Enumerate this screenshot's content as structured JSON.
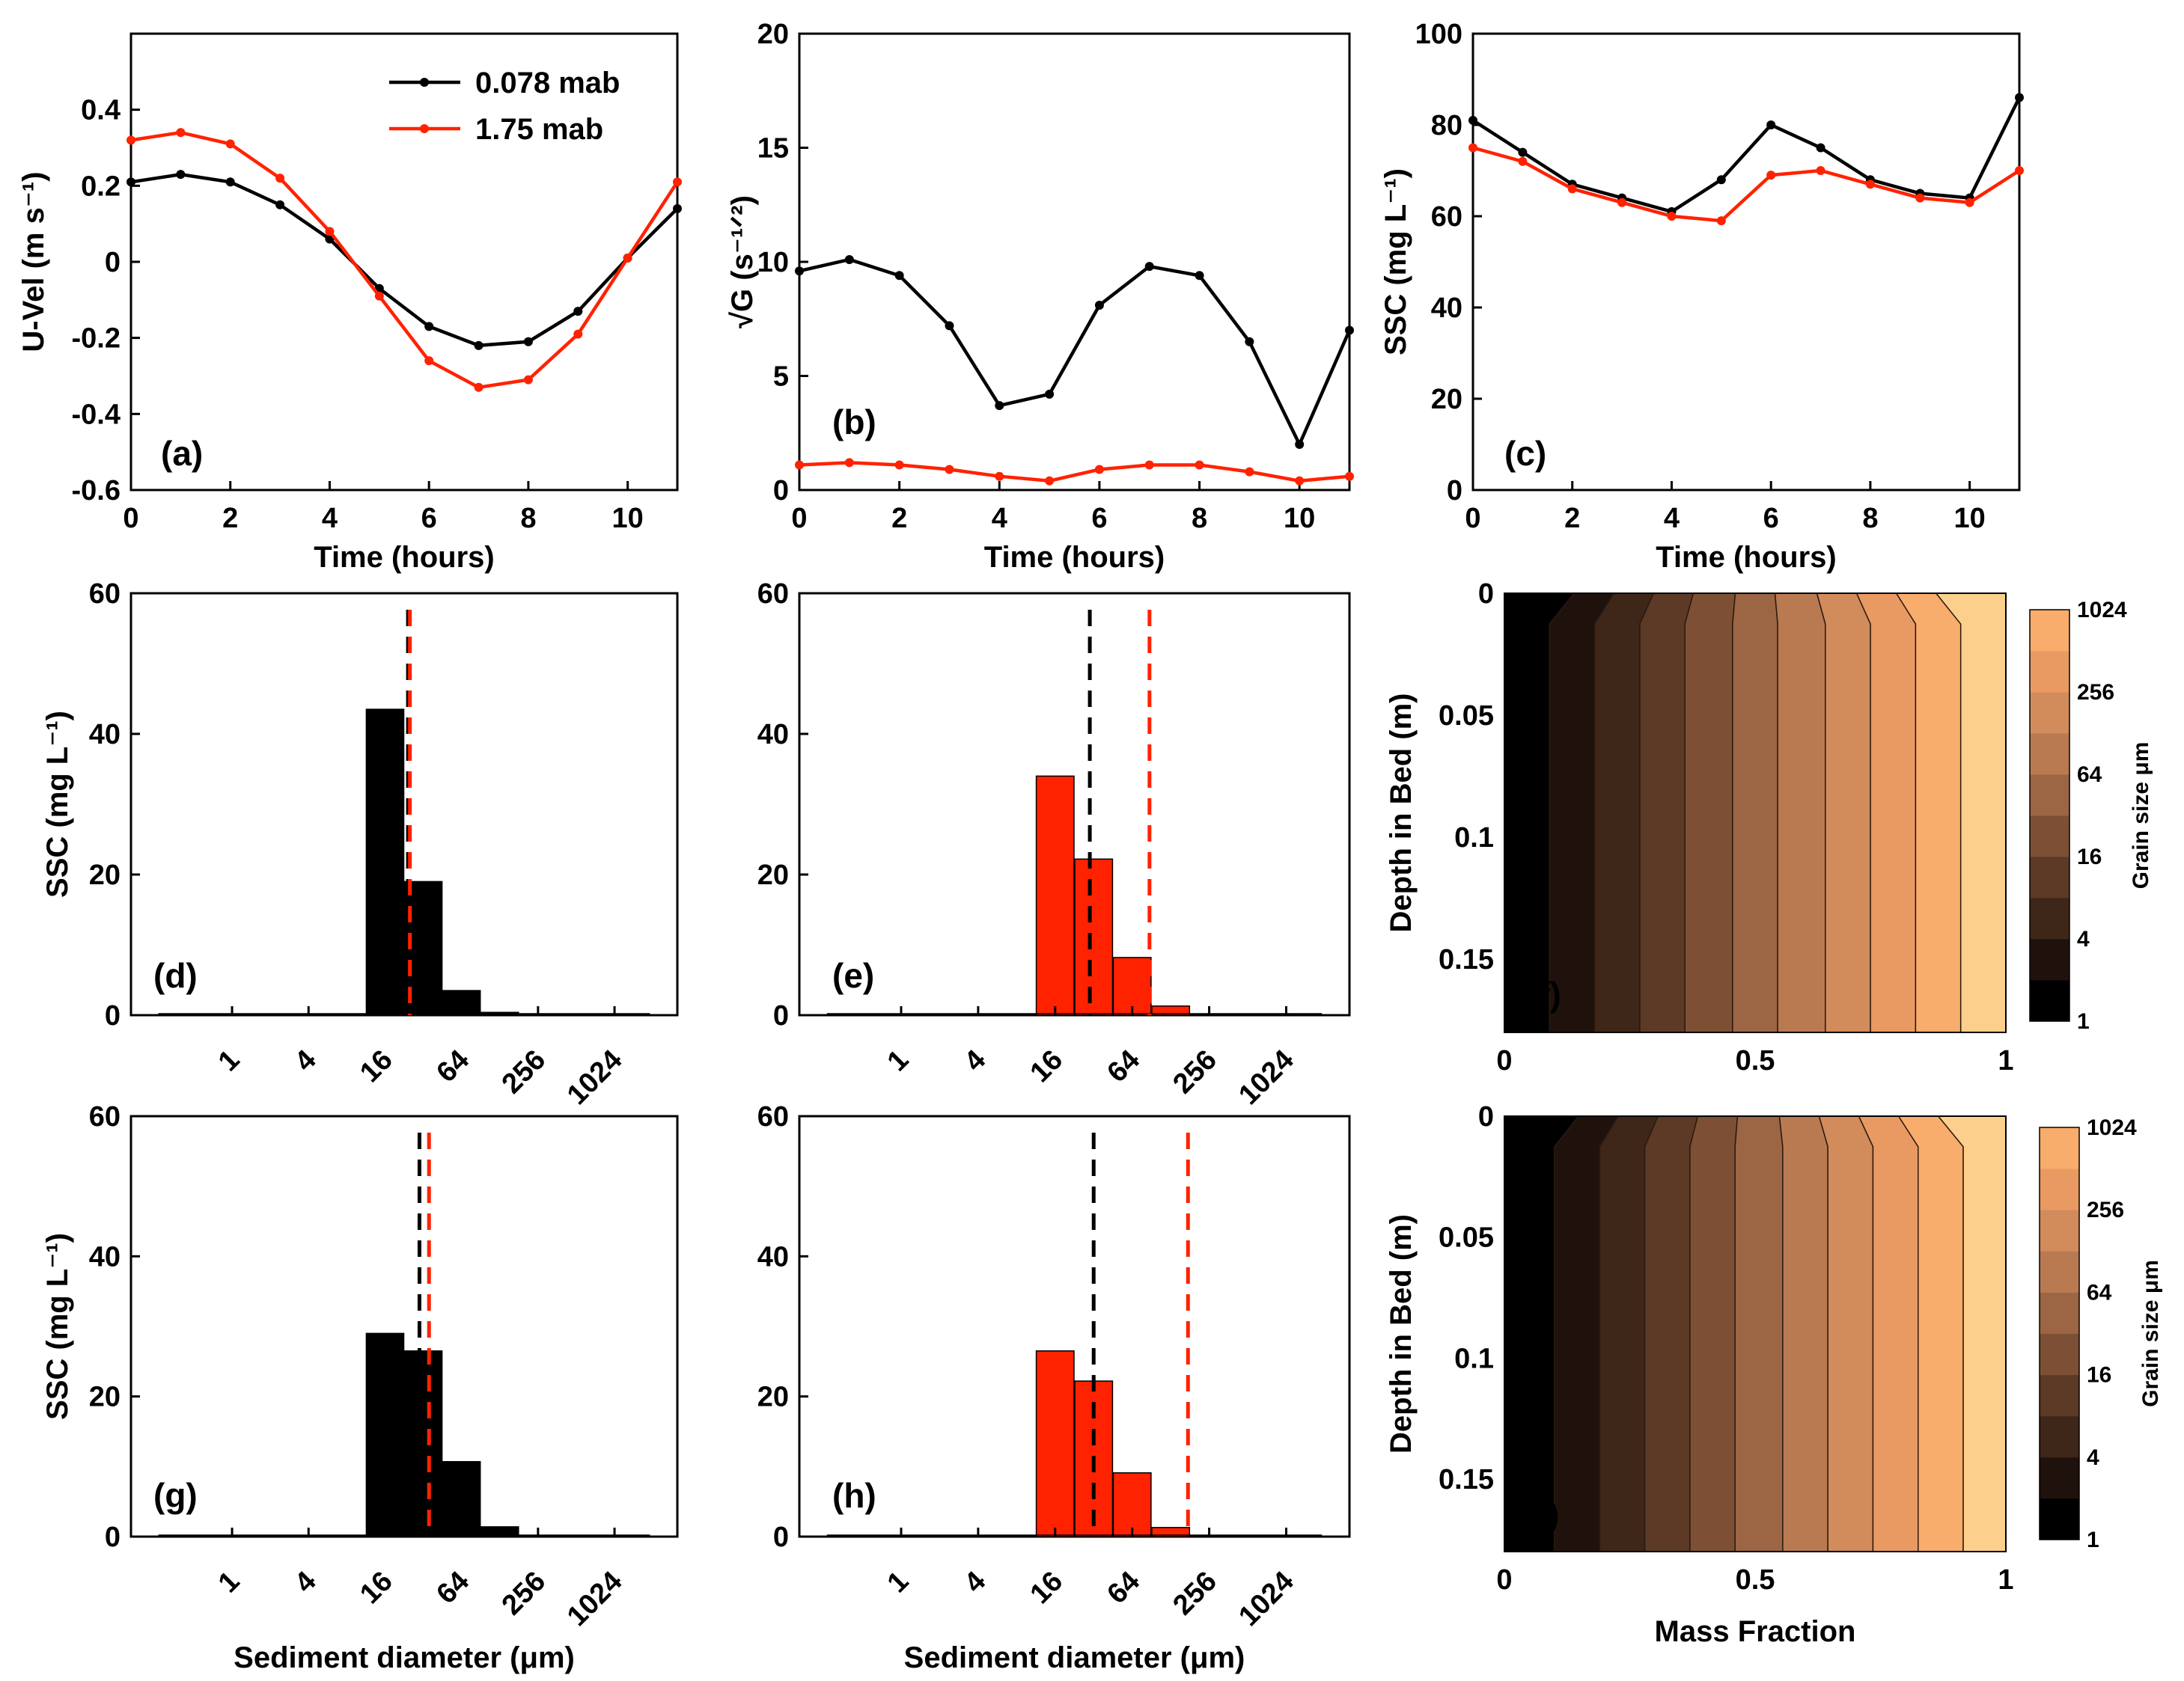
{
  "colors": {
    "black_series": "#000000",
    "red_series": "#ff2200",
    "bar_black": "#000000",
    "bar_red": "#ff2200"
  },
  "chart_data": [
    {
      "id": "a",
      "type": "line",
      "panel_label": "(a)",
      "xlabel": "Time (hours)",
      "ylabel": "U-Vel (m s⁻¹)",
      "xlim": [
        0,
        11
      ],
      "ylim": [
        -0.6,
        0.6
      ],
      "xticks": [
        "0",
        "2",
        "4",
        "6",
        "8",
        "10"
      ],
      "xtick_values": [
        0,
        2,
        4,
        6,
        8,
        10
      ],
      "yticks": [
        "-0.6",
        "-0.4",
        "-0.2",
        "0",
        "0.2",
        "0.4"
      ],
      "ytick_values": [
        -0.6,
        -0.4,
        -0.2,
        0,
        0.2,
        0.4
      ],
      "x": [
        0,
        1,
        2,
        3,
        4,
        5,
        6,
        7,
        8,
        9,
        10,
        11
      ],
      "legend": [
        "0.078 mab",
        "1.75 mab"
      ],
      "series": [
        {
          "name": "0.078 mab",
          "color": "#000000",
          "values": [
            0.21,
            0.23,
            0.21,
            0.15,
            0.06,
            -0.07,
            -0.17,
            -0.22,
            -0.21,
            -0.13,
            0.01,
            0.14
          ]
        },
        {
          "name": "1.75 mab",
          "color": "#ff2200",
          "values": [
            0.32,
            0.34,
            0.31,
            0.22,
            0.08,
            -0.09,
            -0.26,
            -0.33,
            -0.31,
            -0.19,
            0.01,
            0.21
          ]
        }
      ]
    },
    {
      "id": "b",
      "type": "line",
      "panel_label": "(b)",
      "xlabel": "Time (hours)",
      "ylabel": "√G (s⁻¹ᐟ²)",
      "xlim": [
        0,
        11
      ],
      "ylim": [
        0,
        20
      ],
      "xticks": [
        "0",
        "2",
        "4",
        "6",
        "8",
        "10"
      ],
      "xtick_values": [
        0,
        2,
        4,
        6,
        8,
        10
      ],
      "yticks": [
        "0",
        "5",
        "10",
        "15",
        "20"
      ],
      "ytick_values": [
        0,
        5,
        10,
        15,
        20
      ],
      "x": [
        0,
        1,
        2,
        3,
        4,
        5,
        6,
        7,
        8,
        9,
        10,
        11
      ],
      "series": [
        {
          "name": "0.078 mab",
          "color": "#000000",
          "values": [
            9.6,
            10.1,
            9.4,
            7.2,
            3.7,
            4.2,
            8.1,
            9.8,
            9.4,
            6.5,
            2.0,
            7.0
          ]
        },
        {
          "name": "1.75 mab",
          "color": "#ff2200",
          "values": [
            1.1,
            1.2,
            1.1,
            0.9,
            0.6,
            0.4,
            0.9,
            1.1,
            1.1,
            0.8,
            0.4,
            0.6
          ]
        }
      ]
    },
    {
      "id": "c",
      "type": "line",
      "panel_label": "(c)",
      "xlabel": "Time (hours)",
      "ylabel": "SSC (mg L⁻¹)",
      "xlim": [
        0,
        11
      ],
      "ylim": [
        0,
        100
      ],
      "xticks": [
        "0",
        "2",
        "4",
        "6",
        "8",
        "10"
      ],
      "xtick_values": [
        0,
        2,
        4,
        6,
        8,
        10
      ],
      "yticks": [
        "0",
        "20",
        "40",
        "60",
        "80",
        "100"
      ],
      "ytick_values": [
        0,
        20,
        40,
        60,
        80,
        100
      ],
      "x": [
        0,
        1,
        2,
        3,
        4,
        5,
        6,
        7,
        8,
        9,
        10,
        11
      ],
      "series": [
        {
          "name": "0.078 mab",
          "color": "#000000",
          "values": [
            81,
            74,
            67,
            64,
            61,
            68,
            80,
            75,
            68,
            65,
            64,
            86
          ]
        },
        {
          "name": "1.75 mab",
          "color": "#ff2200",
          "values": [
            75,
            72,
            66,
            63,
            60,
            59,
            69,
            70,
            67,
            64,
            63,
            70
          ]
        }
      ]
    },
    {
      "id": "d",
      "type": "bar",
      "panel_label": "(d)",
      "xlabel": "",
      "ylabel": "SSC (mg L⁻¹)",
      "ylim": [
        0,
        60
      ],
      "yticks": [
        "0",
        "20",
        "40",
        "60"
      ],
      "ytick_values": [
        0,
        20,
        40,
        60
      ],
      "xticks": [
        "1",
        "4",
        "16",
        "64",
        "256",
        "1024"
      ],
      "xtick_exp": [
        0,
        2,
        4,
        6,
        8,
        10
      ],
      "bar_exp": [
        0,
        1,
        2,
        3,
        4,
        5,
        6,
        7,
        8,
        9,
        10
      ],
      "values": [
        0,
        0,
        0,
        0,
        43.5,
        19.0,
        3.5,
        0.4,
        0.1,
        0.05,
        0
      ],
      "bar_color": "#000000",
      "dashed_lines": [
        {
          "color": "#000000",
          "x_exp": 4.6
        },
        {
          "color": "#ff2200",
          "x_exp": 4.65
        }
      ]
    },
    {
      "id": "e",
      "type": "bar",
      "panel_label": "(e)",
      "xlabel": "",
      "ylabel": "",
      "ylim": [
        0,
        60
      ],
      "yticks": [
        "0",
        "20",
        "40",
        "60"
      ],
      "ytick_values": [
        0,
        20,
        40,
        60
      ],
      "xticks": [
        "1",
        "4",
        "16",
        "64",
        "256",
        "1024"
      ],
      "xtick_exp": [
        0,
        2,
        4,
        6,
        8,
        10
      ],
      "bar_exp": [
        0,
        1,
        2,
        3,
        4,
        5,
        6,
        7,
        8,
        9,
        10
      ],
      "values": [
        0,
        0,
        0,
        0,
        34,
        22.2,
        8.2,
        1.3,
        0.1,
        0.05,
        0
      ],
      "bar_color": "#ff2200",
      "dashed_lines": [
        {
          "color": "#000000",
          "x_exp": 4.9
        },
        {
          "color": "#ff2200",
          "x_exp": 6.45
        }
      ]
    },
    {
      "id": "g",
      "type": "bar",
      "panel_label": "(g)",
      "xlabel": "Sediment diameter (μm)",
      "ylabel": "SSC (mg L⁻¹)",
      "ylim": [
        0,
        60
      ],
      "yticks": [
        "0",
        "20",
        "40",
        "60"
      ],
      "ytick_values": [
        0,
        20,
        40,
        60
      ],
      "xticks": [
        "1",
        "4",
        "16",
        "64",
        "256",
        "1024"
      ],
      "xtick_exp": [
        0,
        2,
        4,
        6,
        8,
        10
      ],
      "bar_exp": [
        0,
        1,
        2,
        3,
        4,
        5,
        6,
        7,
        8,
        9,
        10
      ],
      "values": [
        0,
        0,
        0,
        0,
        29,
        26.5,
        10.7,
        1.4,
        0.1,
        0.05,
        0
      ],
      "bar_color": "#000000",
      "dashed_lines": [
        {
          "color": "#000000",
          "x_exp": 4.9
        },
        {
          "color": "#ff2200",
          "x_exp": 5.15
        }
      ]
    },
    {
      "id": "h",
      "type": "bar",
      "panel_label": "(h)",
      "xlabel": "Sediment diameter (μm)",
      "ylabel": "",
      "ylim": [
        0,
        60
      ],
      "yticks": [
        "0",
        "20",
        "40",
        "60"
      ],
      "ytick_values": [
        0,
        20,
        40,
        60
      ],
      "xticks": [
        "1",
        "4",
        "16",
        "64",
        "256",
        "1024"
      ],
      "xtick_exp": [
        0,
        2,
        4,
        6,
        8,
        10
      ],
      "bar_exp": [
        0,
        1,
        2,
        3,
        4,
        5,
        6,
        7,
        8,
        9,
        10
      ],
      "values": [
        0,
        0,
        0,
        0,
        26.5,
        22.2,
        9.1,
        1.3,
        0.1,
        0.05,
        0
      ],
      "bar_color": "#ff2200",
      "dashed_lines": [
        {
          "color": "#000000",
          "x_exp": 5.0
        },
        {
          "color": "#ff2200",
          "x_exp": 7.45
        }
      ]
    },
    {
      "id": "f",
      "type": "heatmap",
      "panel_label": "(f)",
      "xlabel": "",
      "ylabel": "Depth in Bed (m)",
      "xlim": [
        0,
        1
      ],
      "ylim": [
        0,
        0.18
      ],
      "xticks": [
        "0",
        "0.5",
        "1"
      ],
      "xtick_values": [
        0,
        0.5,
        1
      ],
      "yticks": [
        "0",
        "0.05",
        "0.1",
        "0.15"
      ],
      "ytick_values": [
        0,
        0.05,
        0.1,
        0.15
      ],
      "boundaries": [
        0.09,
        0.18,
        0.27,
        0.36,
        0.455,
        0.545,
        0.64,
        0.73,
        0.82,
        0.91
      ],
      "colorbar_label": "Grain size μm",
      "colorbar_ticks": [
        "1",
        "4",
        "16",
        "64",
        "256",
        "1024"
      ],
      "colorbar_levels": 10,
      "band_colors": [
        "#000000",
        "#1f120c",
        "#3e2618",
        "#5c3a26",
        "#7d5035",
        "#9c6543",
        "#b97a52",
        "#d28b5b",
        "#e99a62",
        "#f9ad6c",
        "#fcd08c"
      ]
    },
    {
      "id": "i",
      "type": "heatmap",
      "panel_label": "(i)",
      "xlabel": "Mass Fraction",
      "ylabel": "Depth in Bed (m)",
      "xlim": [
        0,
        1
      ],
      "ylim": [
        0,
        0.18
      ],
      "xticks": [
        "0",
        "0.5",
        "1"
      ],
      "xtick_values": [
        0,
        0.5,
        1
      ],
      "yticks": [
        "0",
        "0.05",
        "0.1",
        "0.15"
      ],
      "ytick_values": [
        0,
        0.05,
        0.1,
        0.15
      ],
      "boundaries": [
        0.1,
        0.19,
        0.28,
        0.37,
        0.46,
        0.555,
        0.645,
        0.735,
        0.825,
        0.915
      ],
      "colorbar_label": "Grain size μm",
      "colorbar_ticks": [
        "1",
        "4",
        "16",
        "64",
        "256",
        "1024"
      ],
      "colorbar_levels": 10,
      "band_colors": [
        "#000000",
        "#1f120c",
        "#3e2618",
        "#5c3a26",
        "#7d5035",
        "#9c6543",
        "#b97a52",
        "#d28b5b",
        "#e99a62",
        "#f9ad6c",
        "#fcd08c"
      ]
    }
  ]
}
